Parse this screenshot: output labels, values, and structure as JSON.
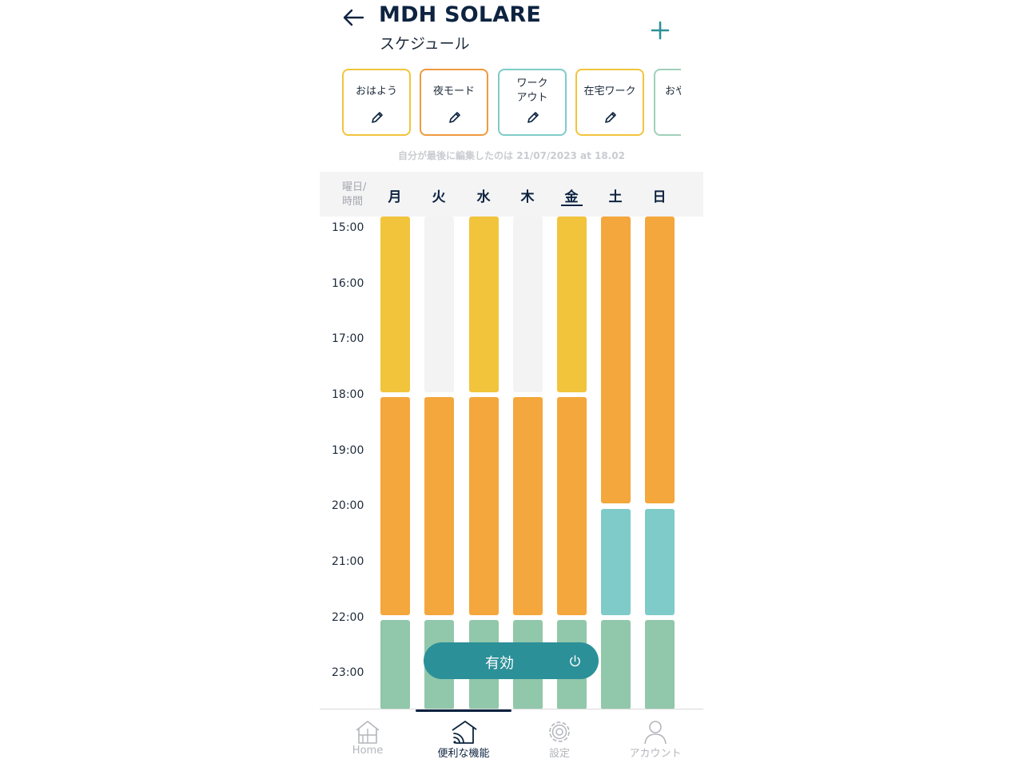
{
  "header": {
    "title": "MDH SOLARE",
    "subtitle": "スケジュール"
  },
  "presets": [
    {
      "label": "おはよう",
      "color": "#f2c43c"
    },
    {
      "label": "夜モード",
      "color": "#ef9a3f"
    },
    {
      "label": "ワーク\nアウト",
      "color": "#7ecbc9"
    },
    {
      "label": "在宅ワーク",
      "color": "#f2c43c"
    },
    {
      "label": "おや",
      "color": "#9fd0b9"
    }
  ],
  "last_edited": "自分が最後に編集したのは 21/07/2023 at 18.02",
  "day_header_label": "曜日/\n時間",
  "days": [
    "月",
    "火",
    "水",
    "木",
    "金",
    "土",
    "日"
  ],
  "selected_day": "金",
  "times": [
    "15:00",
    "16:00",
    "17:00",
    "18:00",
    "19:00",
    "20:00",
    "21:00",
    "22:00",
    "23:00"
  ],
  "colors": {
    "morning": "#f2c43c",
    "night": "#f4a73c",
    "workout": "#7ecbc9",
    "sleep": "#91c7aa",
    "empty": "#f3f3f4",
    "accent": "#2c9098"
  },
  "schedule": [
    {
      "day": "月",
      "blocks": [
        {
          "mode": "morning",
          "start": 14.8,
          "end": 18.0
        },
        {
          "mode": "night",
          "start": 18.0,
          "end": 22.0
        },
        {
          "mode": "sleep",
          "start": 22.0,
          "end": 24.0
        }
      ]
    },
    {
      "day": "火",
      "blocks": [
        {
          "mode": "empty",
          "start": 14.8,
          "end": 18.0
        },
        {
          "mode": "night",
          "start": 18.0,
          "end": 22.0
        },
        {
          "mode": "sleep",
          "start": 22.0,
          "end": 24.0
        }
      ]
    },
    {
      "day": "水",
      "blocks": [
        {
          "mode": "morning",
          "start": 14.8,
          "end": 18.0
        },
        {
          "mode": "night",
          "start": 18.0,
          "end": 22.0
        },
        {
          "mode": "sleep",
          "start": 22.0,
          "end": 24.0
        }
      ]
    },
    {
      "day": "木",
      "blocks": [
        {
          "mode": "empty",
          "start": 14.8,
          "end": 18.0
        },
        {
          "mode": "night",
          "start": 18.0,
          "end": 22.0
        },
        {
          "mode": "sleep",
          "start": 22.0,
          "end": 24.0
        }
      ]
    },
    {
      "day": "金",
      "blocks": [
        {
          "mode": "morning",
          "start": 14.8,
          "end": 18.0
        },
        {
          "mode": "night",
          "start": 18.0,
          "end": 22.0
        },
        {
          "mode": "sleep",
          "start": 22.0,
          "end": 24.0
        }
      ]
    },
    {
      "day": "土",
      "blocks": [
        {
          "mode": "night",
          "start": 14.8,
          "end": 20.0
        },
        {
          "mode": "workout",
          "start": 20.0,
          "end": 22.0
        },
        {
          "mode": "sleep",
          "start": 22.0,
          "end": 24.0
        }
      ]
    },
    {
      "day": "日",
      "blocks": [
        {
          "mode": "night",
          "start": 14.8,
          "end": 20.0
        },
        {
          "mode": "workout",
          "start": 20.0,
          "end": 22.0
        },
        {
          "mode": "sleep",
          "start": 22.0,
          "end": 24.0
        }
      ]
    }
  ],
  "enable_button": {
    "label": "有効",
    "icon": "power-icon"
  },
  "nav": [
    {
      "label": "Home",
      "icon": "house-icon",
      "active": false
    },
    {
      "label": "便利な機能",
      "icon": "smart-home-icon",
      "active": true
    },
    {
      "label": "設定",
      "icon": "gear-icon",
      "active": false
    },
    {
      "label": "アカウント",
      "icon": "user-icon",
      "active": false
    }
  ]
}
